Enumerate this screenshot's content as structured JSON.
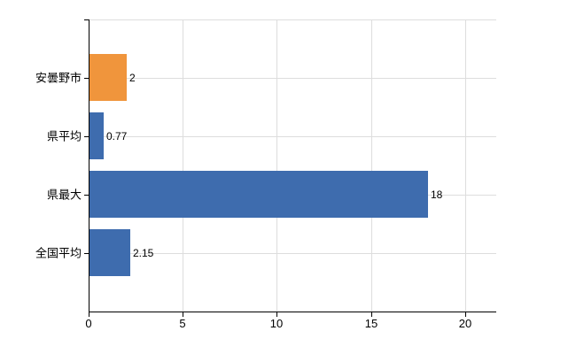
{
  "chart_data": {
    "type": "bar",
    "orientation": "horizontal",
    "title": "",
    "categories": [
      "安曇野市",
      "県平均",
      "県最大",
      "全国平均"
    ],
    "values": [
      2,
      0.77,
      18,
      2.15
    ],
    "value_labels": [
      "2",
      "0.77",
      "18",
      "2.15"
    ],
    "bar_colors": [
      "#F0953C",
      "#3E6CAE",
      "#3E6CAE",
      "#3E6CAE"
    ],
    "x_ticks": [
      "0",
      "5",
      "10",
      "15",
      "20"
    ],
    "x_tick_values": [
      0,
      5,
      10,
      15,
      20
    ],
    "xlim": [
      0,
      21.65
    ],
    "grid": true,
    "legend": false,
    "gridlines": "at category centers, plot top, and x-axis ticks",
    "colors": {
      "axis": "#000000",
      "gridline": "#dddddd",
      "background": "#ffffff",
      "text": "#000000"
    }
  }
}
